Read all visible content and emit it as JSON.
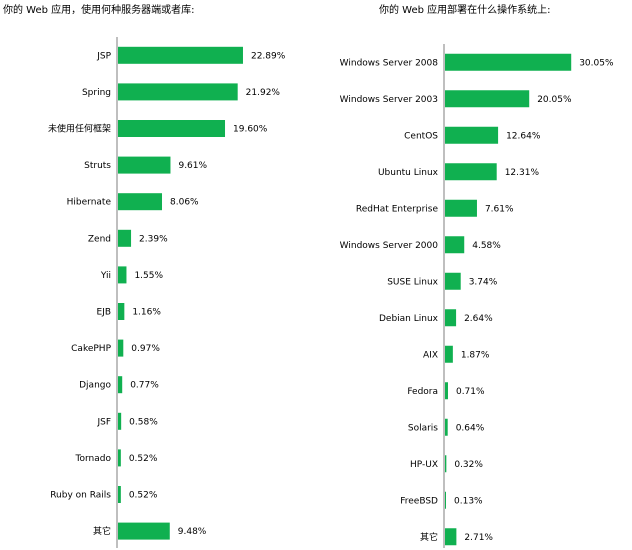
{
  "colors": {
    "bar": "#10b050",
    "axis": "#7f7f7f"
  },
  "chart_data": [
    {
      "type": "bar",
      "orientation": "horizontal",
      "title": "你的 Web 应用，使用何种服务器端或者库:",
      "categories": [
        "JSP",
        "Spring",
        "未使用任何框架",
        "Struts",
        "Hibernate",
        "Zend",
        "Yii",
        "EJB",
        "CakePHP",
        "Django",
        "JSF",
        "Tornado",
        "Ruby on Rails",
        "其它"
      ],
      "values": [
        22.89,
        21.92,
        19.6,
        9.61,
        8.06,
        2.39,
        1.55,
        1.16,
        0.97,
        0.77,
        0.58,
        0.52,
        0.52,
        9.48
      ],
      "value_labels": [
        "22.89%",
        "21.92%",
        "19.60%",
        "9.61%",
        "8.06%",
        "2.39%",
        "1.55%",
        "1.16%",
        "0.97%",
        "0.77%",
        "0.58%",
        "0.52%",
        "0.52%",
        "9.48%"
      ],
      "unit": "%",
      "xlim": [
        0,
        30
      ],
      "grid": false,
      "legend": "none"
    },
    {
      "type": "bar",
      "orientation": "horizontal",
      "title": "你的 Web 应用部署在什么操作系统上:",
      "categories": [
        "Windows Server 2008",
        "Windows Server 2003",
        "CentOS",
        "Ubuntu Linux",
        "RedHat Enterprise",
        "Windows Server 2000",
        "SUSE Linux",
        "Debian Linux",
        "AIX",
        "Fedora",
        "Solaris",
        "HP-UX",
        "FreeBSD",
        "其它"
      ],
      "values": [
        30.05,
        20.05,
        12.64,
        12.31,
        7.61,
        4.58,
        3.74,
        2.64,
        1.87,
        0.71,
        0.64,
        0.32,
        0.13,
        2.71
      ],
      "value_labels": [
        "30.05%",
        "20.05%",
        "12.64%",
        "12.31%",
        "7.61%",
        "4.58%",
        "3.74%",
        "2.64%",
        "1.87%",
        "0.71%",
        "0.64%",
        "0.32%",
        "0.13%",
        "2.71%"
      ],
      "unit": "%",
      "xlim": [
        0,
        32
      ],
      "grid": false,
      "legend": "none"
    }
  ]
}
